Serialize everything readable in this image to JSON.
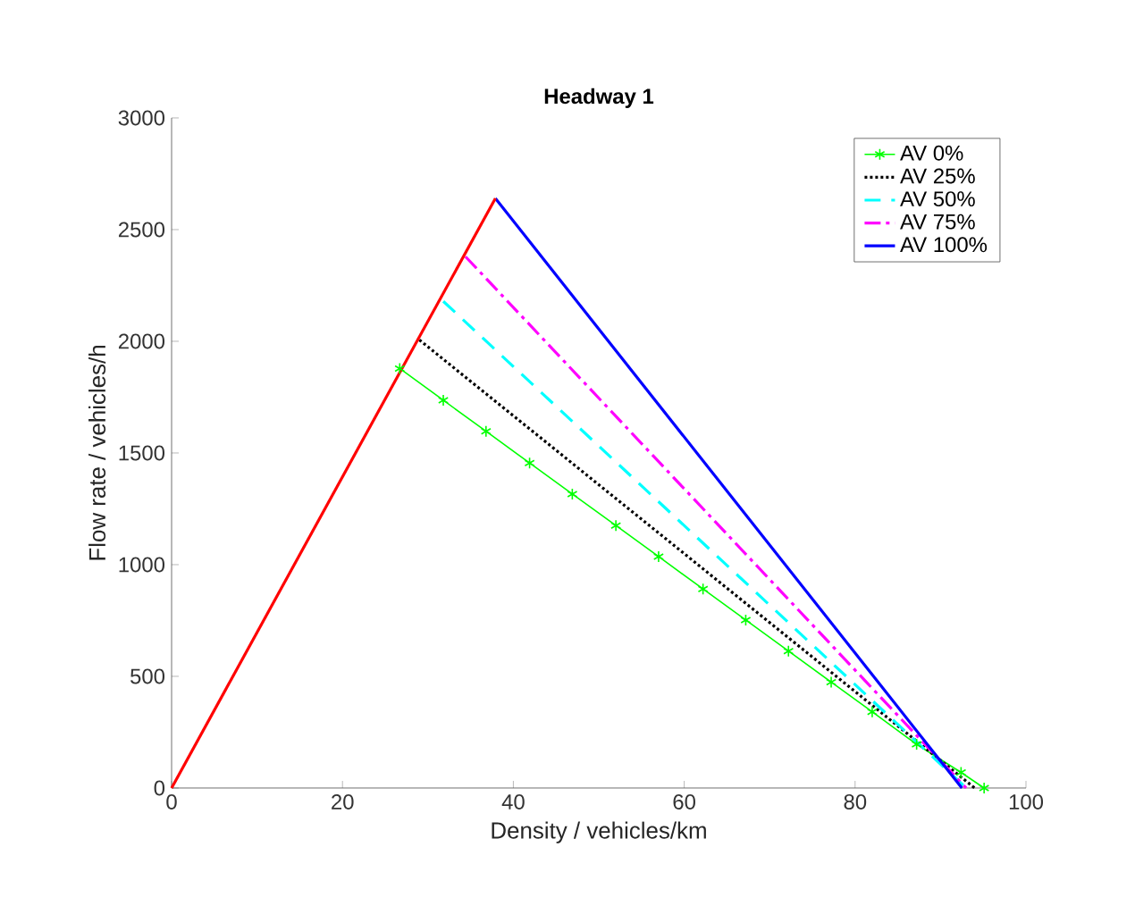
{
  "chart_data": {
    "type": "line",
    "title": "**Headway 1**",
    "xlabel": "Density / vehicles/km",
    "ylabel": "Flow rate / vehicles/h",
    "xlim": [
      0,
      100
    ],
    "ylim": [
      0,
      3000
    ],
    "xticks": [
      0,
      20,
      40,
      60,
      80,
      100
    ],
    "yticks": [
      0,
      500,
      1000,
      1500,
      2000,
      2500,
      3000
    ],
    "grid": false,
    "legend": "top right",
    "marker": "none",
    "line_style": "solid",
    "series": [
      {
        "name": "AV 0%",
        "color": "#00ff00",
        "marker": "cross",
        "line_style": "solid",
        "x": [
          26.7,
          31.8,
          36.8,
          41.9,
          46.9,
          52.0,
          57.0,
          62.2,
          67.2,
          72.2,
          77.2,
          82.0,
          87.2,
          92.4,
          95.1
        ],
        "values": [
          1878,
          1736,
          1597,
          1455,
          1316,
          1175,
          1036,
          891,
          752,
          613,
          474,
          341,
          196,
          70,
          0
        ]
      },
      {
        "name": "AV 25%",
        "color": "#000000",
        "line_style": "dotted",
        "x": [
          29.0,
          94.0
        ],
        "values": [
          2006,
          0
        ]
      },
      {
        "name": "AV 50%",
        "color": "#00ffff",
        "line_style": "dashed",
        "x": [
          31.8,
          93.0
        ],
        "values": [
          2179,
          0
        ]
      },
      {
        "name": "AV 75%",
        "color": "#ff00ff",
        "line_style": "dashdot",
        "x": [
          34.4,
          93.0
        ],
        "values": [
          2379,
          0
        ]
      },
      {
        "name": "AV 100%",
        "color": "#0000ff",
        "x": [
          37.9,
          92.5
        ],
        "values": [
          2640,
          0
        ]
      },
      {
        "color": "#ff0000",
        "x": [
          0,
          37.9
        ],
        "values": [
          0,
          2640
        ]
      }
    ]
  }
}
